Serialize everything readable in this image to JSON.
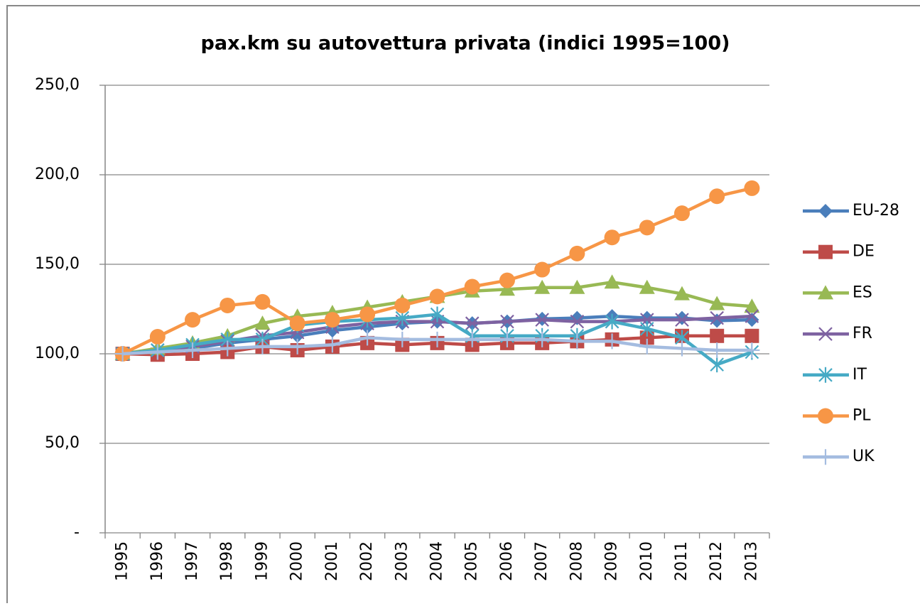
{
  "chart_data": {
    "type": "line",
    "title": "pax.km su autovettura privata (indici 1995=100)",
    "categories": [
      "1995",
      "1996",
      "1997",
      "1998",
      "1999",
      "2000",
      "2001",
      "2002",
      "2003",
      "2004",
      "2005",
      "2006",
      "2007",
      "2008",
      "2009",
      "2010",
      "2011",
      "2012",
      "2013"
    ],
    "ylim": [
      0,
      250
    ],
    "yticks": [
      {
        "value": 0,
        "label": "-"
      },
      {
        "value": 50,
        "label": "50,0"
      },
      {
        "value": 100,
        "label": "100,0"
      },
      {
        "value": 150,
        "label": "150,0"
      },
      {
        "value": 200,
        "label": "200,0"
      },
      {
        "value": 250,
        "label": "250,0"
      }
    ],
    "grid": true,
    "legend": "right",
    "series": [
      {
        "name": "EU-28",
        "color": "#4a7ebb",
        "marker": "diamond",
        "values": [
          100,
          101,
          103,
          106,
          108,
          110,
          113,
          115,
          117,
          118,
          117,
          118,
          119.5,
          120,
          121,
          120,
          120,
          118.5,
          119
        ]
      },
      {
        "name": "DE",
        "color": "#be4b48",
        "marker": "square",
        "values": [
          100,
          99.5,
          100,
          101,
          104,
          102,
          104,
          106,
          105,
          106,
          105,
          106,
          106,
          107,
          108,
          109,
          110,
          110,
          110
        ]
      },
      {
        "name": "ES",
        "color": "#98b954",
        "marker": "triangle",
        "values": [
          100,
          103,
          106,
          110,
          117,
          121,
          123,
          126,
          129,
          132,
          135,
          136,
          137,
          137,
          140,
          137,
          133.5,
          128,
          126.5
        ]
      },
      {
        "name": "FR",
        "color": "#7e62a1",
        "marker": "x",
        "values": [
          100,
          102,
          104,
          107,
          110,
          112,
          115,
          117,
          118,
          118,
          117,
          118,
          119,
          118,
          118,
          119,
          119,
          120,
          121
        ]
      },
      {
        "name": "IT",
        "color": "#46aac5",
        "marker": "star",
        "values": [
          100,
          102,
          105,
          108,
          108,
          116,
          118,
          119,
          120,
          122,
          110,
          110,
          110,
          110,
          118,
          114,
          109,
          94,
          101
        ]
      },
      {
        "name": "PL",
        "color": "#f79646",
        "marker": "circle",
        "values": [
          100,
          109.5,
          119,
          127,
          129,
          117,
          119,
          122,
          127,
          132,
          137.5,
          141,
          147,
          156,
          165,
          170.5,
          178.5,
          188,
          192.5
        ]
      },
      {
        "name": "UK",
        "color": "#a4bce0",
        "marker": "plus",
        "values": [
          100,
          101,
          102,
          103,
          104,
          104,
          105,
          109,
          108,
          108,
          108,
          108,
          108,
          107,
          107,
          104,
          103,
          102,
          102
        ]
      }
    ]
  }
}
